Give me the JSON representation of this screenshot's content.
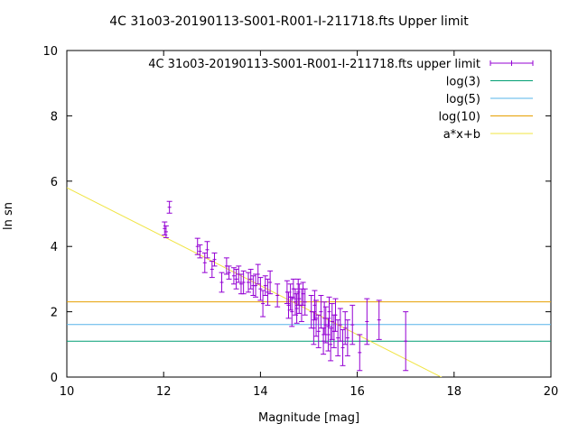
{
  "chart_data": {
    "type": "scatter",
    "title": "4C 31o03-20190113-S001-R001-I-211718.fts Upper limit",
    "xlabel": "Magnitude [mag]",
    "ylabel": "ln sn",
    "xlim": [
      10,
      20
    ],
    "ylim": [
      0,
      10
    ],
    "x_ticks": [
      "10",
      "12",
      "14",
      "16",
      "18",
      "20"
    ],
    "y_ticks": [
      "0",
      "2",
      "4",
      "6",
      "8",
      "10"
    ],
    "grid": false,
    "legend_position": "top-right",
    "series": [
      {
        "name": "4C 31o03-20190113-S001-R001-I-211718.fts upper limit",
        "color": "#9400d3",
        "style": "yerrorbars",
        "points": [
          {
            "x": 12.02,
            "y": 4.55,
            "err": 0.2
          },
          {
            "x": 12.05,
            "y": 4.45,
            "err": 0.18
          },
          {
            "x": 12.12,
            "y": 5.2,
            "err": 0.18
          },
          {
            "x": 12.7,
            "y": 4.0,
            "err": 0.25
          },
          {
            "x": 12.75,
            "y": 3.85,
            "err": 0.2
          },
          {
            "x": 12.85,
            "y": 3.5,
            "err": 0.3
          },
          {
            "x": 12.9,
            "y": 3.9,
            "err": 0.25
          },
          {
            "x": 13.0,
            "y": 3.3,
            "err": 0.25
          },
          {
            "x": 13.05,
            "y": 3.6,
            "err": 0.2
          },
          {
            "x": 13.2,
            "y": 2.9,
            "err": 0.3
          },
          {
            "x": 13.3,
            "y": 3.4,
            "err": 0.25
          },
          {
            "x": 13.35,
            "y": 3.2,
            "err": 0.2
          },
          {
            "x": 13.45,
            "y": 3.1,
            "err": 0.25
          },
          {
            "x": 13.5,
            "y": 3.0,
            "err": 0.3
          },
          {
            "x": 13.55,
            "y": 3.15,
            "err": 0.25
          },
          {
            "x": 13.6,
            "y": 2.85,
            "err": 0.3
          },
          {
            "x": 13.65,
            "y": 2.9,
            "err": 0.35
          },
          {
            "x": 13.75,
            "y": 2.9,
            "err": 0.3
          },
          {
            "x": 13.8,
            "y": 3.0,
            "err": 0.3
          },
          {
            "x": 13.85,
            "y": 2.8,
            "err": 0.3
          },
          {
            "x": 13.9,
            "y": 2.8,
            "err": 0.35
          },
          {
            "x": 13.95,
            "y": 3.15,
            "err": 0.3
          },
          {
            "x": 14.0,
            "y": 2.7,
            "err": 0.35
          },
          {
            "x": 14.05,
            "y": 2.25,
            "err": 0.4
          },
          {
            "x": 14.1,
            "y": 2.8,
            "err": 0.3
          },
          {
            "x": 14.15,
            "y": 2.6,
            "err": 0.4
          },
          {
            "x": 14.2,
            "y": 2.9,
            "err": 0.35
          },
          {
            "x": 14.35,
            "y": 2.5,
            "err": 0.35
          },
          {
            "x": 14.55,
            "y": 2.6,
            "err": 0.35
          },
          {
            "x": 14.58,
            "y": 2.2,
            "err": 0.4
          },
          {
            "x": 14.62,
            "y": 2.45,
            "err": 0.4
          },
          {
            "x": 14.65,
            "y": 2.0,
            "err": 0.45
          },
          {
            "x": 14.68,
            "y": 2.7,
            "err": 0.3
          },
          {
            "x": 14.72,
            "y": 2.3,
            "err": 0.4
          },
          {
            "x": 14.75,
            "y": 2.1,
            "err": 0.45
          },
          {
            "x": 14.78,
            "y": 2.6,
            "err": 0.4
          },
          {
            "x": 14.8,
            "y": 2.4,
            "err": 0.45
          },
          {
            "x": 14.85,
            "y": 2.2,
            "err": 0.5
          },
          {
            "x": 14.88,
            "y": 2.55,
            "err": 0.35
          },
          {
            "x": 14.92,
            "y": 2.3,
            "err": 0.4
          },
          {
            "x": 15.05,
            "y": 2.0,
            "err": 0.5
          },
          {
            "x": 15.1,
            "y": 1.5,
            "err": 0.5
          },
          {
            "x": 15.12,
            "y": 2.2,
            "err": 0.45
          },
          {
            "x": 15.15,
            "y": 1.8,
            "err": 0.55
          },
          {
            "x": 15.2,
            "y": 1.4,
            "err": 0.5
          },
          {
            "x": 15.25,
            "y": 2.0,
            "err": 0.5
          },
          {
            "x": 15.3,
            "y": 1.1,
            "err": 0.4
          },
          {
            "x": 15.32,
            "y": 1.8,
            "err": 0.5
          },
          {
            "x": 15.35,
            "y": 1.6,
            "err": 0.55
          },
          {
            "x": 15.4,
            "y": 1.3,
            "err": 0.5
          },
          {
            "x": 15.42,
            "y": 2.0,
            "err": 0.45
          },
          {
            "x": 15.45,
            "y": 1.0,
            "err": 0.5
          },
          {
            "x": 15.48,
            "y": 1.7,
            "err": 0.55
          },
          {
            "x": 15.52,
            "y": 1.4,
            "err": 0.5
          },
          {
            "x": 15.55,
            "y": 1.9,
            "err": 0.5
          },
          {
            "x": 15.6,
            "y": 1.2,
            "err": 0.55
          },
          {
            "x": 15.65,
            "y": 1.6,
            "err": 0.5
          },
          {
            "x": 15.7,
            "y": 0.9,
            "err": 0.55
          },
          {
            "x": 15.75,
            "y": 1.5,
            "err": 0.5
          },
          {
            "x": 15.8,
            "y": 1.2,
            "err": 0.55
          },
          {
            "x": 15.9,
            "y": 1.6,
            "err": 0.6
          },
          {
            "x": 16.05,
            "y": 0.75,
            "err": 0.55
          },
          {
            "x": 16.2,
            "y": 1.7,
            "err": 0.7
          },
          {
            "x": 16.45,
            "y": 1.75,
            "err": 0.6
          },
          {
            "x": 17.0,
            "y": 1.1,
            "err": 0.9
          }
        ]
      },
      {
        "name": "log(3)",
        "color": "#009e73",
        "style": "line",
        "y": 1.0986
      },
      {
        "name": "log(5)",
        "color": "#56b4e9",
        "style": "line",
        "y": 1.6094
      },
      {
        "name": "log(10)",
        "color": "#e69f00",
        "style": "line",
        "y": 2.3026
      },
      {
        "name": "a*x+b",
        "color": "#f0e442",
        "style": "line",
        "a": -0.75,
        "b": 13.3
      }
    ]
  }
}
